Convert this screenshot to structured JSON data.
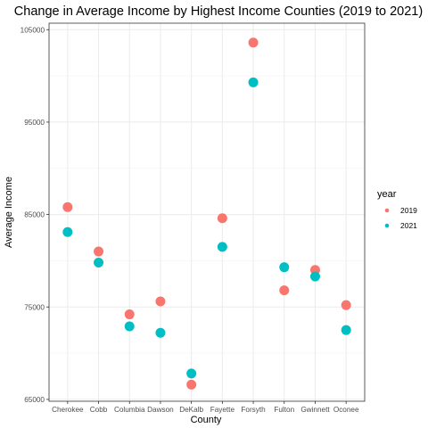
{
  "chart_data": {
    "type": "scatter",
    "title": "Change in Average Income by Highest Income Counties (2019 to 2021)",
    "xlabel": "County",
    "ylabel": "Average Income",
    "categories": [
      "Cherokee",
      "Cobb",
      "Columbia",
      "Dawson",
      "DeKalb",
      "Fayette",
      "Forsyth",
      "Fulton",
      "Gwinnett",
      "Oconee"
    ],
    "ylim": [
      64800,
      105700
    ],
    "yticks": [
      65000,
      75000,
      85000,
      95000,
      105000
    ],
    "yticklabels": [
      "65000",
      "75000",
      "85000",
      "95000",
      "105000"
    ],
    "grid": true,
    "legend": {
      "title": "year",
      "placement": "right"
    },
    "series": [
      {
        "name": "2019",
        "color": "#F8766D",
        "values": [
          85800,
          81000,
          74200,
          75600,
          66600,
          84600,
          103600,
          76800,
          79000,
          75200
        ]
      },
      {
        "name": "2021",
        "color": "#00BFC4",
        "values": [
          83100,
          79800,
          72900,
          72200,
          67800,
          81500,
          99300,
          79300,
          78300,
          72500
        ]
      }
    ]
  }
}
